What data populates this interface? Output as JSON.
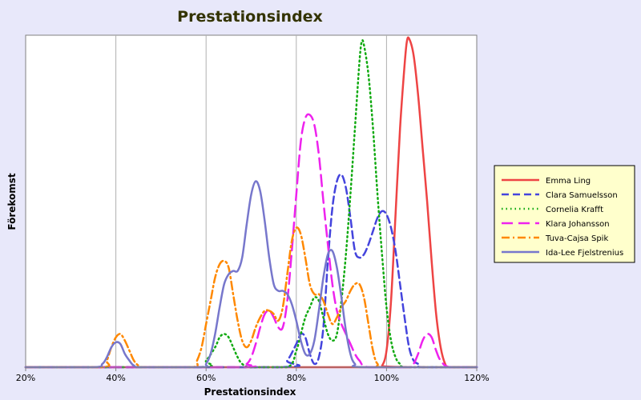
{
  "chart_data": {
    "type": "line",
    "title": "Prestationsindex",
    "xlabel": "Prestationsindex",
    "ylabel": "Förekomst",
    "xlim": [
      0.2,
      1.2
    ],
    "ylim": [
      0,
      1.0
    ],
    "xticks": [
      {
        "value": 0.2,
        "label": "20%"
      },
      {
        "value": 0.4,
        "label": "40%"
      },
      {
        "value": 0.6,
        "label": "60%"
      },
      {
        "value": 0.8,
        "label": "80%"
      },
      {
        "value": 1.0,
        "label": "100%"
      },
      {
        "value": 1.2,
        "label": "120%"
      }
    ],
    "grid": {
      "vertical": true,
      "horizontal": false
    },
    "legend_position": "right",
    "series": [
      {
        "name": "Emma Ling",
        "color": "#ee4444",
        "dash": "solid",
        "points": [
          [
            0.2,
            0
          ],
          [
            0.98,
            0
          ],
          [
            0.99,
            0.004
          ],
          [
            1.0,
            0.05
          ],
          [
            1.01,
            0.2
          ],
          [
            1.02,
            0.46
          ],
          [
            1.03,
            0.72
          ],
          [
            1.04,
            0.91
          ],
          [
            1.045,
            0.98
          ],
          [
            1.05,
            0.99
          ],
          [
            1.06,
            0.94
          ],
          [
            1.07,
            0.82
          ],
          [
            1.08,
            0.66
          ],
          [
            1.09,
            0.5
          ],
          [
            1.1,
            0.32
          ],
          [
            1.11,
            0.16
          ],
          [
            1.12,
            0.06
          ],
          [
            1.13,
            0.01
          ],
          [
            1.14,
            0
          ],
          [
            1.2,
            0
          ]
        ]
      },
      {
        "name": "Clara Samuelsson",
        "color": "#4444dd",
        "dash": "dashed",
        "points": [
          [
            0.2,
            0
          ],
          [
            0.76,
            0
          ],
          [
            0.78,
            0.02
          ],
          [
            0.8,
            0.07
          ],
          [
            0.81,
            0.1
          ],
          [
            0.82,
            0.09
          ],
          [
            0.83,
            0.04
          ],
          [
            0.84,
            0.01
          ],
          [
            0.85,
            0.03
          ],
          [
            0.86,
            0.12
          ],
          [
            0.87,
            0.32
          ],
          [
            0.88,
            0.48
          ],
          [
            0.89,
            0.56
          ],
          [
            0.9,
            0.58
          ],
          [
            0.91,
            0.54
          ],
          [
            0.92,
            0.45
          ],
          [
            0.93,
            0.35
          ],
          [
            0.94,
            0.33
          ],
          [
            0.95,
            0.34
          ],
          [
            0.96,
            0.37
          ],
          [
            0.97,
            0.41
          ],
          [
            0.98,
            0.45
          ],
          [
            0.99,
            0.47
          ],
          [
            1.0,
            0.46
          ],
          [
            1.01,
            0.42
          ],
          [
            1.02,
            0.35
          ],
          [
            1.03,
            0.25
          ],
          [
            1.04,
            0.15
          ],
          [
            1.05,
            0.06
          ],
          [
            1.06,
            0.02
          ],
          [
            1.07,
            0.01
          ],
          [
            1.08,
            0
          ],
          [
            1.2,
            0
          ]
        ]
      },
      {
        "name": "Cornelia Krafft",
        "color": "#11aa11",
        "dash": "dotted",
        "points": [
          [
            0.2,
            0
          ],
          [
            0.58,
            0
          ],
          [
            0.6,
            0.02
          ],
          [
            0.62,
            0.06
          ],
          [
            0.63,
            0.09
          ],
          [
            0.64,
            0.1
          ],
          [
            0.65,
            0.09
          ],
          [
            0.66,
            0.06
          ],
          [
            0.67,
            0.03
          ],
          [
            0.68,
            0.01
          ],
          [
            0.7,
            0
          ],
          [
            0.78,
            0
          ],
          [
            0.8,
            0.05
          ],
          [
            0.81,
            0.1
          ],
          [
            0.82,
            0.15
          ],
          [
            0.83,
            0.18
          ],
          [
            0.84,
            0.21
          ],
          [
            0.85,
            0.2
          ],
          [
            0.86,
            0.15
          ],
          [
            0.87,
            0.1
          ],
          [
            0.88,
            0.08
          ],
          [
            0.89,
            0.1
          ],
          [
            0.9,
            0.2
          ],
          [
            0.91,
            0.34
          ],
          [
            0.92,
            0.52
          ],
          [
            0.93,
            0.72
          ],
          [
            0.94,
            0.92
          ],
          [
            0.945,
            0.98
          ],
          [
            0.95,
            0.97
          ],
          [
            0.96,
            0.88
          ],
          [
            0.97,
            0.72
          ],
          [
            0.98,
            0.52
          ],
          [
            0.99,
            0.34
          ],
          [
            1.0,
            0.18
          ],
          [
            1.01,
            0.08
          ],
          [
            1.02,
            0.03
          ],
          [
            1.03,
            0.01
          ],
          [
            1.05,
            0
          ],
          [
            1.2,
            0
          ]
        ]
      },
      {
        "name": "Klara Johansson",
        "color": "#ee22ee",
        "dash": "longdash",
        "points": [
          [
            0.2,
            0
          ],
          [
            0.67,
            0
          ],
          [
            0.69,
            0.01
          ],
          [
            0.7,
            0.03
          ],
          [
            0.71,
            0.07
          ],
          [
            0.72,
            0.12
          ],
          [
            0.73,
            0.16
          ],
          [
            0.74,
            0.17
          ],
          [
            0.75,
            0.15
          ],
          [
            0.76,
            0.12
          ],
          [
            0.77,
            0.12
          ],
          [
            0.78,
            0.2
          ],
          [
            0.79,
            0.35
          ],
          [
            0.8,
            0.52
          ],
          [
            0.81,
            0.68
          ],
          [
            0.82,
            0.75
          ],
          [
            0.83,
            0.76
          ],
          [
            0.84,
            0.73
          ],
          [
            0.85,
            0.64
          ],
          [
            0.86,
            0.5
          ],
          [
            0.87,
            0.37
          ],
          [
            0.88,
            0.25
          ],
          [
            0.89,
            0.17
          ],
          [
            0.9,
            0.13
          ],
          [
            0.91,
            0.1
          ],
          [
            0.92,
            0.07
          ],
          [
            0.93,
            0.04
          ],
          [
            0.94,
            0.02
          ],
          [
            0.96,
            0
          ],
          [
            1.05,
            0
          ],
          [
            1.06,
            0.01
          ],
          [
            1.07,
            0.04
          ],
          [
            1.08,
            0.08
          ],
          [
            1.09,
            0.1
          ],
          [
            1.1,
            0.09
          ],
          [
            1.11,
            0.05
          ],
          [
            1.12,
            0.02
          ],
          [
            1.14,
            0
          ],
          [
            1.2,
            0
          ]
        ]
      },
      {
        "name": "Tuva-Cajsa Spik",
        "color": "#ff8800",
        "dash": "dashdot",
        "points": [
          [
            0.2,
            0
          ],
          [
            0.37,
            0
          ],
          [
            0.38,
            0.02
          ],
          [
            0.39,
            0.06
          ],
          [
            0.4,
            0.09
          ],
          [
            0.41,
            0.1
          ],
          [
            0.42,
            0.08
          ],
          [
            0.43,
            0.05
          ],
          [
            0.44,
            0.02
          ],
          [
            0.45,
            0.005
          ],
          [
            0.46,
            0
          ],
          [
            0.57,
            0
          ],
          [
            0.58,
            0.02
          ],
          [
            0.59,
            0.06
          ],
          [
            0.6,
            0.13
          ],
          [
            0.61,
            0.2
          ],
          [
            0.62,
            0.27
          ],
          [
            0.63,
            0.31
          ],
          [
            0.64,
            0.32
          ],
          [
            0.65,
            0.3
          ],
          [
            0.66,
            0.22
          ],
          [
            0.67,
            0.14
          ],
          [
            0.68,
            0.08
          ],
          [
            0.69,
            0.06
          ],
          [
            0.7,
            0.08
          ],
          [
            0.71,
            0.12
          ],
          [
            0.72,
            0.15
          ],
          [
            0.73,
            0.17
          ],
          [
            0.74,
            0.17
          ],
          [
            0.75,
            0.16
          ],
          [
            0.76,
            0.14
          ],
          [
            0.77,
            0.18
          ],
          [
            0.78,
            0.28
          ],
          [
            0.79,
            0.38
          ],
          [
            0.8,
            0.42
          ],
          [
            0.81,
            0.4
          ],
          [
            0.82,
            0.33
          ],
          [
            0.83,
            0.25
          ],
          [
            0.84,
            0.22
          ],
          [
            0.85,
            0.22
          ],
          [
            0.86,
            0.2
          ],
          [
            0.87,
            0.16
          ],
          [
            0.88,
            0.13
          ],
          [
            0.89,
            0.15
          ],
          [
            0.9,
            0.18
          ],
          [
            0.91,
            0.2
          ],
          [
            0.92,
            0.23
          ],
          [
            0.93,
            0.25
          ],
          [
            0.94,
            0.25
          ],
          [
            0.95,
            0.21
          ],
          [
            0.96,
            0.13
          ],
          [
            0.97,
            0.05
          ],
          [
            0.98,
            0.01
          ],
          [
            1.0,
            0
          ],
          [
            1.2,
            0
          ]
        ]
      },
      {
        "name": "Ida-Lee Fjelstrenius",
        "color": "#7777cc",
        "dash": "solid",
        "points": [
          [
            0.2,
            0
          ],
          [
            0.35,
            0
          ],
          [
            0.37,
            0.01
          ],
          [
            0.38,
            0.03
          ],
          [
            0.39,
            0.06
          ],
          [
            0.4,
            0.075
          ],
          [
            0.41,
            0.07
          ],
          [
            0.42,
            0.04
          ],
          [
            0.43,
            0.02
          ],
          [
            0.44,
            0.005
          ],
          [
            0.46,
            0
          ],
          [
            0.59,
            0
          ],
          [
            0.6,
            0.01
          ],
          [
            0.61,
            0.04
          ],
          [
            0.62,
            0.1
          ],
          [
            0.63,
            0.18
          ],
          [
            0.64,
            0.25
          ],
          [
            0.65,
            0.28
          ],
          [
            0.66,
            0.29
          ],
          [
            0.67,
            0.29
          ],
          [
            0.68,
            0.33
          ],
          [
            0.69,
            0.43
          ],
          [
            0.7,
            0.52
          ],
          [
            0.71,
            0.56
          ],
          [
            0.72,
            0.53
          ],
          [
            0.73,
            0.44
          ],
          [
            0.74,
            0.33
          ],
          [
            0.75,
            0.25
          ],
          [
            0.76,
            0.23
          ],
          [
            0.77,
            0.23
          ],
          [
            0.78,
            0.22
          ],
          [
            0.79,
            0.19
          ],
          [
            0.8,
            0.14
          ],
          [
            0.81,
            0.08
          ],
          [
            0.82,
            0.04
          ],
          [
            0.83,
            0.04
          ],
          [
            0.84,
            0.08
          ],
          [
            0.85,
            0.17
          ],
          [
            0.86,
            0.27
          ],
          [
            0.87,
            0.34
          ],
          [
            0.88,
            0.35
          ],
          [
            0.89,
            0.3
          ],
          [
            0.9,
            0.21
          ],
          [
            0.91,
            0.11
          ],
          [
            0.92,
            0.04
          ],
          [
            0.93,
            0.01
          ],
          [
            0.95,
            0
          ],
          [
            1.2,
            0
          ]
        ]
      }
    ]
  }
}
